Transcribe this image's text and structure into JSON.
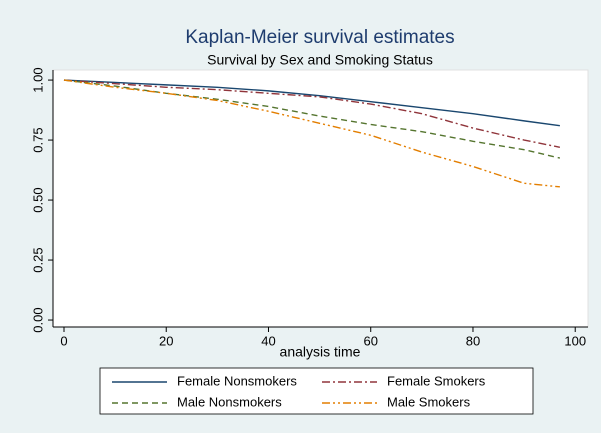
{
  "chart_data": {
    "type": "line",
    "title": "Kaplan-Meier survival estimates",
    "subtitle": "Survival by Sex and Smoking Status",
    "x_label": "analysis time",
    "x": [
      0,
      10,
      20,
      30,
      40,
      50,
      60,
      70,
      80,
      90,
      97
    ],
    "series": [
      {
        "name": "Female Nonsmokers",
        "color": "#1a476f",
        "dash": "solid",
        "values": [
          1.0,
          0.99,
          0.98,
          0.97,
          0.955,
          0.935,
          0.91,
          0.885,
          0.86,
          0.83,
          0.81
        ]
      },
      {
        "name": "Female Smokers",
        "color": "#90353b",
        "dash": "dashdot",
        "values": [
          1.0,
          0.985,
          0.97,
          0.96,
          0.945,
          0.93,
          0.9,
          0.86,
          0.8,
          0.75,
          0.72
        ]
      },
      {
        "name": "Male Nonsmokers",
        "color": "#55752f",
        "dash": "dash",
        "values": [
          1.0,
          0.975,
          0.945,
          0.92,
          0.89,
          0.85,
          0.815,
          0.785,
          0.745,
          0.71,
          0.675
        ]
      },
      {
        "name": "Male Smokers",
        "color": "#e37e00",
        "dash": "dashdotdot",
        "values": [
          1.0,
          0.97,
          0.945,
          0.915,
          0.87,
          0.82,
          0.77,
          0.7,
          0.64,
          0.57,
          0.555
        ]
      }
    ],
    "xlim": [
      -2.15,
      102.5
    ],
    "ylim": [
      -0.029,
      1.042
    ],
    "xticks": [
      0,
      20,
      40,
      60,
      80,
      100
    ],
    "yticks": [
      {
        "value": 0,
        "label": "0.00"
      },
      {
        "value": 0.25,
        "label": "0.25"
      },
      {
        "value": 0.5,
        "label": "0.50"
      },
      {
        "value": 0.75,
        "label": "0.75"
      },
      {
        "value": 1,
        "label": "1.00"
      }
    ],
    "grid": false,
    "legend": "bottom"
  }
}
